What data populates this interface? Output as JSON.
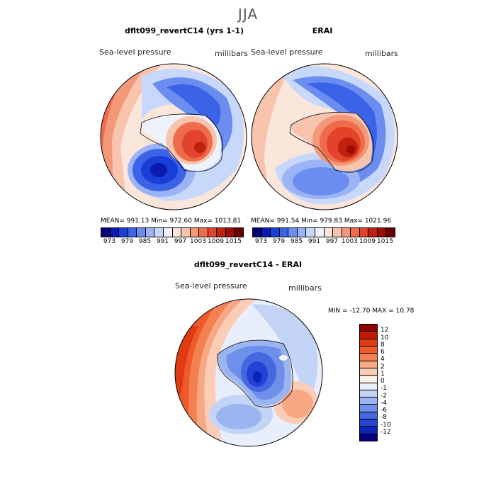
{
  "season": "JJA",
  "panels": [
    {
      "title": "dflt099_revertC14 (yrs 1-1)",
      "variable": "Sea-level pressure",
      "units": "millibars",
      "stats": "MEAN= 991.13   Min= 972.60   Max= 1013.81"
    },
    {
      "title": "ERAI",
      "variable": "Sea-level pressure",
      "units": "millibars",
      "stats": "MEAN= 991.54   Min= 979.83   Max= 1021.96"
    }
  ],
  "colorbar_top": {
    "ticks": [
      "973",
      "979",
      "985",
      "991",
      "997",
      "1003",
      "1009",
      "1015"
    ],
    "colors": [
      "#07007a",
      "#0a1bb0",
      "#1a3fd8",
      "#3a63e8",
      "#6b8df0",
      "#9cb4f5",
      "#c8d8fa",
      "#eef2fb",
      "#fbe6dc",
      "#f8c4ae",
      "#f3997a",
      "#ee6c4b",
      "#e2432a",
      "#c2200f",
      "#9a0d05",
      "#6b0000"
    ]
  },
  "diff_panel": {
    "title": "dflt099_revertC14 - ERAI",
    "variable": "Sea-level pressure",
    "units": "millibars",
    "minmax": "MIN = -12.70  MAX =  10.78"
  },
  "colorbar_diff": {
    "ticks": [
      "12",
      "10",
      "8",
      "6",
      "4",
      "2",
      "1",
      "0",
      "-1",
      "-2",
      "-4",
      "-6",
      "-8",
      "-10",
      "-12"
    ],
    "colors": [
      "#8f0000",
      "#c21a00",
      "#e03a10",
      "#ee5a2a",
      "#f38050",
      "#f8a882",
      "#fbcdb6",
      "#fdeee6",
      "#e8eefb",
      "#c4d4f6",
      "#9ab5f0",
      "#6e90ea",
      "#4567df",
      "#2243d4",
      "#0a24b8",
      "#06007e"
    ]
  }
}
